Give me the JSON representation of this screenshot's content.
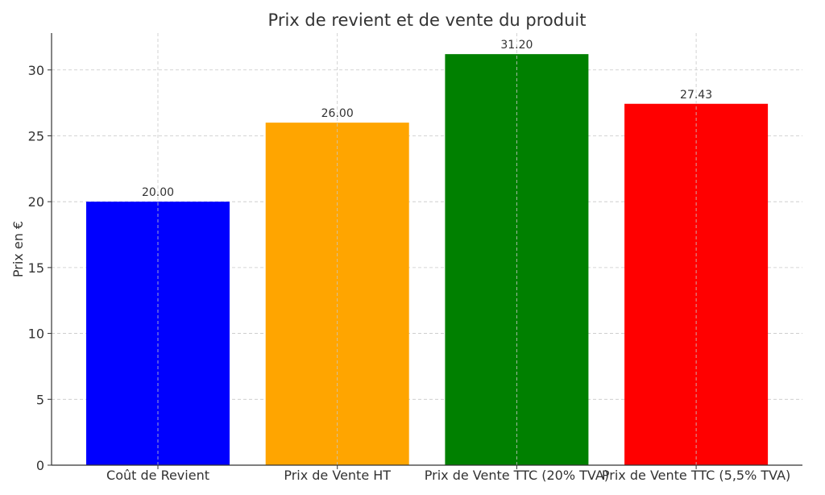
{
  "chart_data": {
    "type": "bar",
    "title": "Prix de revient et de vente du produit",
    "xlabel": "",
    "ylabel": "Prix en €",
    "ylim": [
      0,
      32.8
    ],
    "yticks": [
      0,
      5,
      10,
      15,
      20,
      25,
      30
    ],
    "grid": true,
    "categories": [
      "Coût de Revient",
      "Prix de Vente HT",
      "Prix de Vente TTC (20% TVA)",
      "Prix de Vente TTC (5,5% TVA)"
    ],
    "values": [
      20.0,
      26.0,
      31.2,
      27.43
    ],
    "value_labels": [
      "20.00",
      "26.00",
      "31.20",
      "27.43"
    ],
    "colors": [
      "#0000ff",
      "#ffa500",
      "#008000",
      "#ff0000"
    ]
  }
}
